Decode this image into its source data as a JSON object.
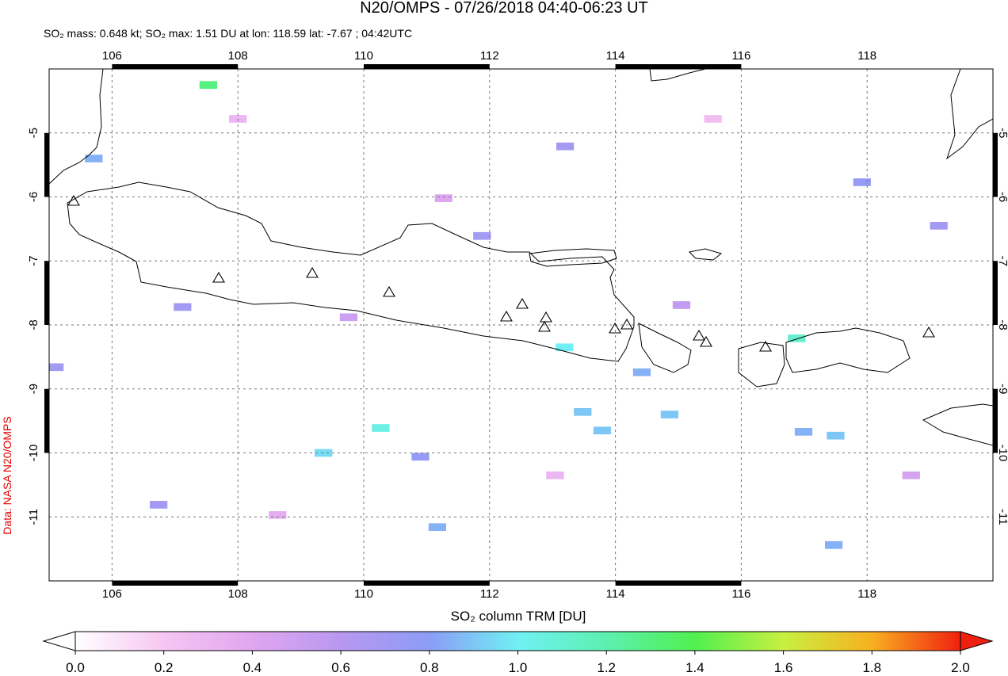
{
  "title": "N20/OMPS - 07/26/2018 04:40-06:23 UT",
  "subtitle": "SO₂ mass: 0.648 kt; SO₂ max: 1.51 DU at lon: 118.59 lat: -7.67 ; 04:42UTC",
  "credit": "Data: NASA N20/OMPS",
  "map": {
    "xlim": [
      105,
      120
    ],
    "ylim": [
      -12,
      -4
    ],
    "xticks": [
      106,
      108,
      110,
      112,
      114,
      116,
      118
    ],
    "yticks": [
      -5,
      -6,
      -7,
      -8,
      -9,
      -10,
      -11
    ],
    "grid": true,
    "cells": {
      "lon": [
        107.53,
        113.19,
        116.88,
        110.27,
        109.36,
        114.42,
        116.99,
        117.5,
        113.48,
        113.79,
        114.86,
        117.47,
        111.17,
        117.92,
        119.14,
        113.2,
        111.88,
        110.9,
        105.71,
        105.09,
        106.74,
        107.12,
        108.0,
        111.27,
        115.55,
        108.63,
        118.7,
        113.04,
        115.05,
        109.76
      ],
      "lat": [
        -4.25,
        -8.35,
        -8.21,
        -9.61,
        -10.0,
        -8.74,
        -9.67,
        -9.73,
        -9.36,
        -9.65,
        -9.4,
        -11.44,
        -11.16,
        -5.77,
        -6.45,
        -5.21,
        -6.61,
        -10.06,
        -5.4,
        -8.66,
        -10.81,
        -7.72,
        -4.78,
        -6.02,
        -4.78,
        -10.97,
        -10.35,
        -10.35,
        -7.69,
        -7.88
      ],
      "values": [
        1.3,
        1.0,
        1.1,
        1.05,
        0.95,
        0.85,
        0.85,
        0.9,
        0.9,
        0.9,
        0.9,
        0.85,
        0.85,
        0.75,
        0.7,
        0.7,
        0.7,
        0.75,
        0.85,
        0.7,
        0.7,
        0.7,
        0.3,
        0.4,
        0.25,
        0.35,
        0.45,
        0.3,
        0.55,
        0.5
      ]
    }
  },
  "colorbar": {
    "label": "SO₂ column TRM [DU]",
    "lim": [
      0,
      2
    ],
    "ticks": [
      {
        "value": 0,
        "label": "0.0"
      },
      {
        "value": 0.2,
        "label": "0.2"
      },
      {
        "value": 0.4,
        "label": "0.4"
      },
      {
        "value": 0.6,
        "label": "0.6"
      },
      {
        "value": 0.8,
        "label": "0.8"
      },
      {
        "value": 1,
        "label": "1.0"
      },
      {
        "value": 1.2,
        "label": "1.2"
      },
      {
        "value": 1.4,
        "label": "1.4"
      },
      {
        "value": 1.6,
        "label": "1.6"
      },
      {
        "value": 1.8,
        "label": "1.8"
      },
      {
        "value": 2,
        "label": "2.0"
      }
    ],
    "colors": [
      "#ffffff",
      "#f6c6f2",
      "#e0a6f0",
      "#b898f0",
      "#8c9cf6",
      "#70f0f4",
      "#5cf0b0",
      "#50f050",
      "#c8f040",
      "#f8b020",
      "#f02010"
    ]
  }
}
